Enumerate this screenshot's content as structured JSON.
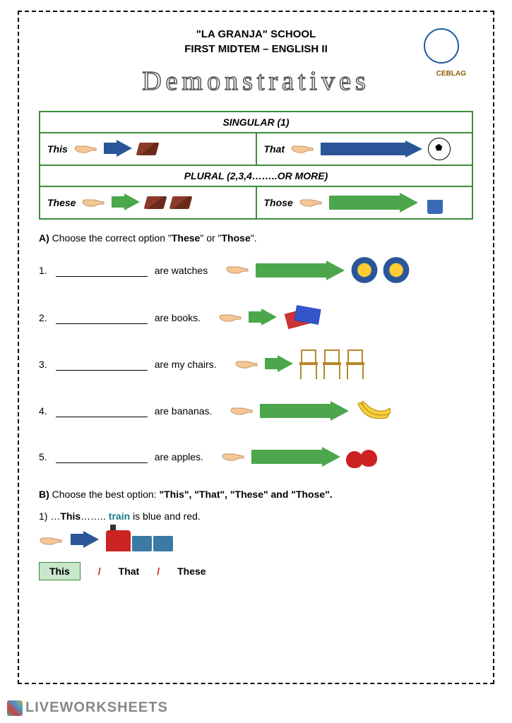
{
  "header": {
    "school": "\"LA GRANJA\" SCHOOL",
    "subtitle": "FIRST MIDTEM – ENGLISH II",
    "title": "Demonstratives",
    "logo_label": "CEBLAG"
  },
  "table": {
    "singular_header": "SINGULAR (1)",
    "plural_header": "PLURAL (2,3,4……..OR MORE)",
    "this_label": "This",
    "that_label": "That",
    "these_label": "These",
    "those_label": "Those"
  },
  "section_a": {
    "instruction_prefix": "A)",
    "instruction": "Choose the correct option \"",
    "opt1": "These",
    "mid": "\" or \"",
    "opt2": "Those",
    "suffix": "\".",
    "questions": [
      {
        "num": "1.",
        "text": "are watches",
        "arrow": "long",
        "icon": "watch",
        "count": 2
      },
      {
        "num": "2.",
        "text": "are books.",
        "arrow": "short",
        "icon": "books",
        "count": 1
      },
      {
        "num": "3.",
        "text": "are my chairs.",
        "arrow": "short",
        "icon": "chair",
        "count": 3
      },
      {
        "num": "4.",
        "text": "are bananas.",
        "arrow": "long",
        "icon": "banana",
        "count": 1
      },
      {
        "num": "5.",
        "text": "are apples.",
        "arrow": "long",
        "icon": "apples",
        "count": 1
      }
    ]
  },
  "section_b": {
    "instruction_prefix": "B)",
    "instruction": "Choose the best option: ",
    "opts_text": "\"This\", \"That\",  \"These\" and \"Those\".",
    "q1_num": "1)",
    "q1_prefix": "…",
    "q1_answer": "This",
    "q1_dots": "……..",
    "q1_highlight": "train",
    "q1_rest": " is blue and red.",
    "options": [
      "This",
      "That",
      "These"
    ],
    "selected_index": 0
  },
  "footer": {
    "brand": "LIVEWORKSHEETS"
  },
  "colors": {
    "table_border": "#3c8c3c",
    "arrow_blue": "#2a5599",
    "arrow_green": "#4ca64c",
    "selected_bg": "#c8e6c9",
    "highlight": "#1a7a8c",
    "slash": "#cc2222"
  }
}
